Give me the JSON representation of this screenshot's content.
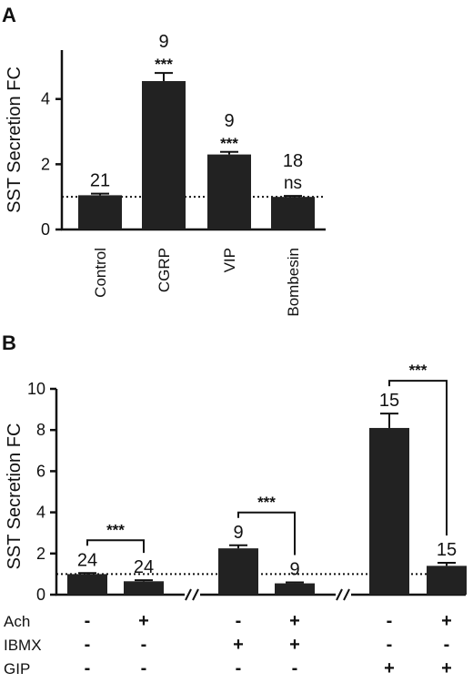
{
  "chart_data": [
    {
      "panel": "A",
      "type": "bar",
      "ylabel": "SST Secretion FC",
      "ylim": [
        0,
        5.5
      ],
      "yticks": [
        "0",
        "2",
        "4"
      ],
      "baseline": 1,
      "categories": [
        "Control",
        "CGRP",
        "VIP",
        "Bombesin"
      ],
      "values": [
        1.05,
        4.55,
        2.3,
        1.0
      ],
      "errors": [
        0.05,
        0.25,
        0.08,
        0.03
      ],
      "n": [
        "21",
        "9",
        "9",
        "18"
      ],
      "significance": [
        "",
        "***",
        "***",
        "ns"
      ]
    },
    {
      "panel": "B",
      "type": "bar",
      "ylabel": "SST Secretion FC",
      "ylim": [
        0,
        10
      ],
      "yticks": [
        "0",
        "2",
        "4",
        "6",
        "8",
        "10"
      ],
      "baseline": 1,
      "values": [
        1.0,
        0.65,
        2.25,
        0.55,
        8.1,
        1.4
      ],
      "errors": [
        0.05,
        0.05,
        0.15,
        0.05,
        0.7,
        0.15
      ],
      "n": [
        "24",
        "24",
        "9",
        "9",
        "15",
        "15"
      ],
      "comparisons": [
        {
          "from": 0,
          "to": 1,
          "label": "***"
        },
        {
          "from": 2,
          "to": 3,
          "label": "***"
        },
        {
          "from": 4,
          "to": 5,
          "label": "***"
        }
      ],
      "axis_break": "//",
      "conditions": [
        {
          "name": "Ach",
          "values": [
            "-",
            "+",
            "-",
            "+",
            "-",
            "+"
          ]
        },
        {
          "name": "IBMX",
          "values": [
            "-",
            "-",
            "+",
            "+",
            "-",
            "-"
          ]
        },
        {
          "name": "GIP",
          "values": [
            "-",
            "-",
            "-",
            "-",
            "+",
            "+"
          ]
        }
      ]
    }
  ]
}
